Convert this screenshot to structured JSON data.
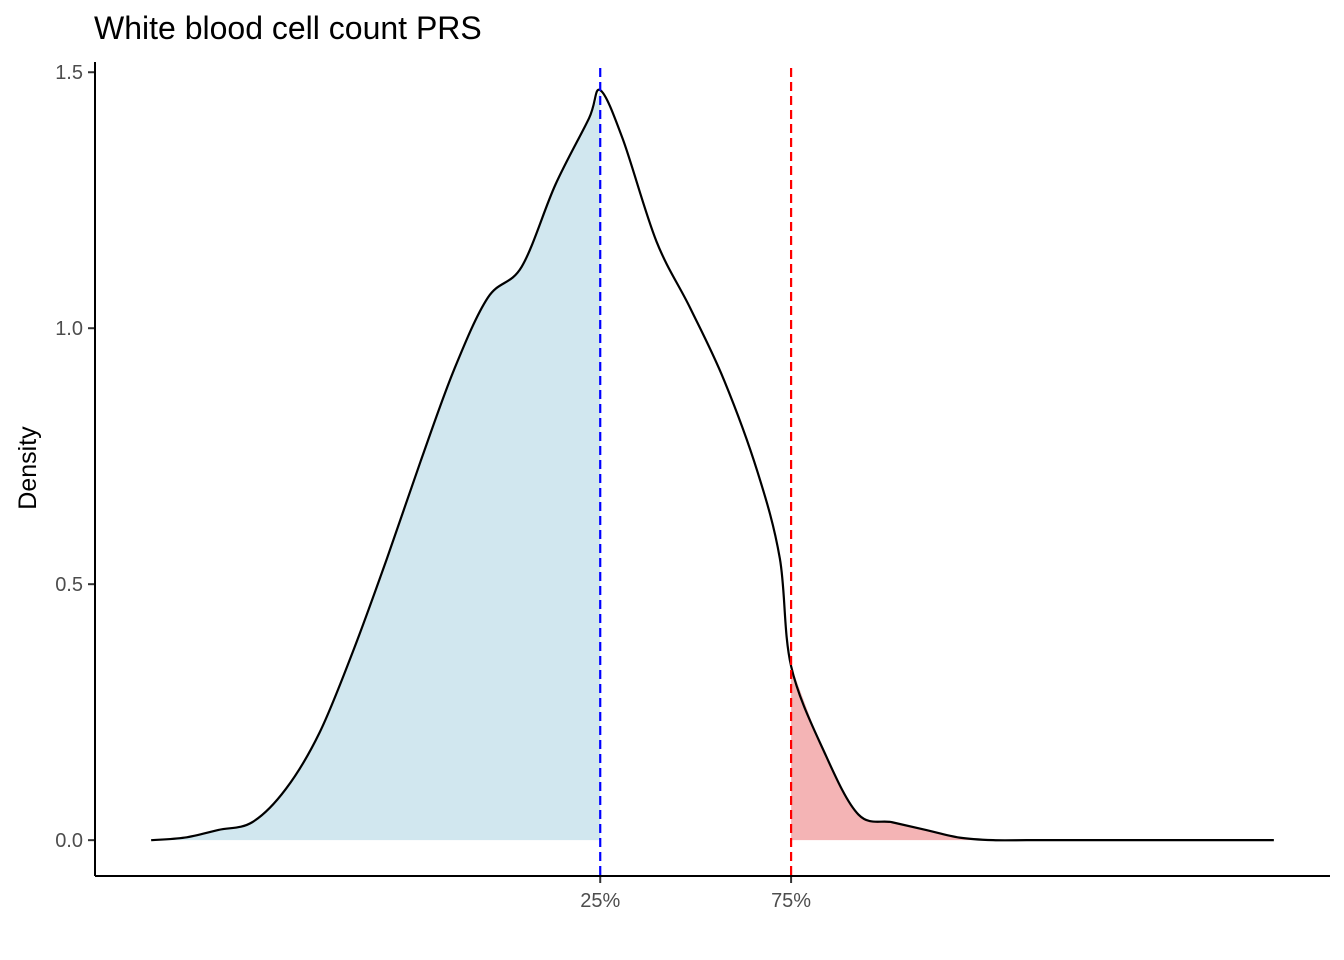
{
  "chart_data": {
    "type": "area",
    "title": "White blood cell count PRS",
    "xlabel": "",
    "ylabel": "Density",
    "ylim": [
      -0.07,
      1.52
    ],
    "xlim": [
      -0.05,
      1.05
    ],
    "yticks": [
      0.0,
      0.5,
      1.0,
      1.5
    ],
    "ytick_labels": [
      "0.0",
      "0.5",
      "1.0",
      "1.5"
    ],
    "xticks": [
      {
        "x": 0.4,
        "label": "25%"
      },
      {
        "x": 0.57,
        "label": "75%"
      }
    ],
    "grid": false,
    "legend": "none",
    "series": [
      {
        "x": [
          0.0,
          0.03,
          0.06,
          0.09,
          0.12,
          0.15,
          0.18,
          0.21,
          0.24,
          0.27,
          0.3,
          0.33,
          0.36,
          0.39,
          0.4,
          0.42,
          0.45,
          0.48,
          0.51,
          0.54,
          0.56,
          0.57,
          0.6,
          0.63,
          0.66,
          0.69,
          0.72,
          0.75,
          0.78,
          0.81,
          0.84,
          0.87,
          0.9,
          0.93,
          0.96,
          1.0
        ],
        "y": [
          0.0,
          0.005,
          0.02,
          0.035,
          0.1,
          0.21,
          0.37,
          0.55,
          0.74,
          0.92,
          1.06,
          1.12,
          1.28,
          1.41,
          1.465,
          1.37,
          1.17,
          1.04,
          0.9,
          0.72,
          0.55,
          0.34,
          0.17,
          0.05,
          0.035,
          0.02,
          0.005,
          0.0,
          0.0,
          0.0,
          0.0,
          0.0,
          0.0,
          0.0,
          0.0,
          0.0
        ]
      }
    ],
    "shaded_regions": [
      {
        "from": 0.0,
        "to": 0.4,
        "color": "#d1e7ef"
      },
      {
        "from": 0.57,
        "to": 1.0,
        "color": "#f4b4b5"
      }
    ],
    "reference_lines": [
      {
        "x": 0.4,
        "color": "#0000ff",
        "style": "dashed"
      },
      {
        "x": 0.57,
        "color": "#ff0000",
        "style": "dashed"
      }
    ]
  }
}
